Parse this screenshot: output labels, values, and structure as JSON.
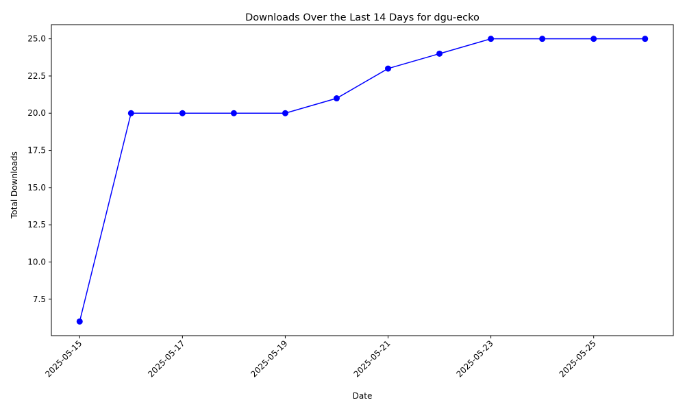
{
  "chart_data": {
    "type": "line",
    "title": "Downloads Over the Last 14 Days for dgu-ecko",
    "xlabel": "Date",
    "ylabel": "Total Downloads",
    "x": [
      "2025-05-15",
      "2025-05-16",
      "2025-05-17",
      "2025-05-18",
      "2025-05-19",
      "2025-05-20",
      "2025-05-21",
      "2025-05-22",
      "2025-05-23",
      "2025-05-24",
      "2025-05-25",
      "2025-05-26"
    ],
    "series": [
      {
        "values": [
          6,
          20,
          20,
          20,
          20,
          21,
          23,
          24,
          25,
          25,
          25,
          25
        ],
        "color": "#0000ff"
      }
    ],
    "xticks": [
      "2025-05-15",
      "2025-05-17",
      "2025-05-19",
      "2025-05-21",
      "2025-05-23",
      "2025-05-25"
    ],
    "yticks": [
      7.5,
      10.0,
      12.5,
      15.0,
      17.5,
      20.0,
      22.5,
      25.0
    ],
    "ytick_labels": [
      "7.5",
      "10.0",
      "12.5",
      "15.0",
      "17.5",
      "20.0",
      "22.5",
      "25.0"
    ],
    "ylim": [
      5.05,
      25.95
    ],
    "x_tick_rotation_deg": 45,
    "grid": false,
    "legend": "none",
    "marker": "circle"
  }
}
